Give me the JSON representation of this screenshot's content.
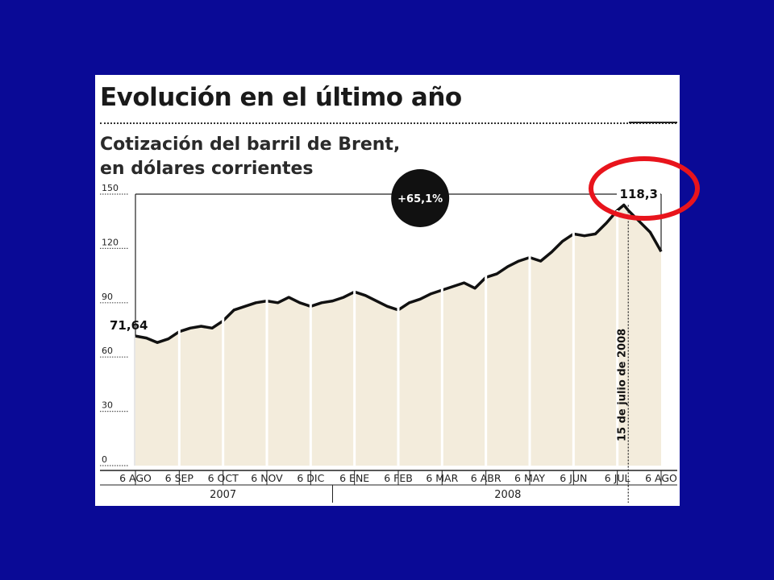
{
  "header": {
    "title": "Evolución en el último año",
    "subtitle_line1": "Cotización del barril de Brent,",
    "subtitle_line2": "en dólares corrientes"
  },
  "annotations": {
    "change_badge": "+65,1%",
    "start_value_label": "71,64",
    "peak_value_label": "118,3",
    "peak_date_label": "15 de julio de 2008"
  },
  "colors": {
    "background": "#0a0a96",
    "panel": "#ffffff",
    "area_fill": "#f3ecdc",
    "line": "#111111",
    "highlight_circle": "#e8141c"
  },
  "chart_data": {
    "type": "area",
    "title": "Evolución en el último año",
    "subtitle": "Cotización del barril de Brent, en dólares corrientes",
    "ylim": [
      0,
      150
    ],
    "y_ticks": [
      0,
      30,
      60,
      90,
      120,
      150
    ],
    "x_ticks": [
      "6 AGO",
      "6 SEP",
      "6 OCT",
      "6 NOV",
      "6 DIC",
      "6 ENE",
      "6 FEB",
      "6 MAR",
      "6 ABR",
      "6 MAY",
      "6 JUN",
      "6 JUL",
      "6 AGO"
    ],
    "years": [
      {
        "label": "2007",
        "start_tick": 0,
        "end_tick": 4
      },
      {
        "label": "2008",
        "start_tick": 5,
        "end_tick": 12
      }
    ],
    "grid": "vertical-white-bands",
    "x": [
      0,
      0.25,
      0.5,
      0.75,
      1,
      1.25,
      1.5,
      1.75,
      2,
      2.25,
      2.5,
      2.75,
      3,
      3.25,
      3.5,
      3.75,
      4,
      4.25,
      4.5,
      4.75,
      5,
      5.25,
      5.5,
      5.75,
      6,
      6.25,
      6.5,
      6.75,
      7,
      7.25,
      7.5,
      7.75,
      8,
      8.25,
      8.5,
      8.75,
      9,
      9.25,
      9.5,
      9.75,
      10,
      10.25,
      10.5,
      10.75,
      11,
      11.15,
      11.25,
      11.5,
      11.75,
      12
    ],
    "values": [
      71.6,
      70.5,
      68,
      70,
      74,
      76,
      77,
      76,
      80,
      86,
      88,
      90,
      91,
      90,
      93,
      90,
      88,
      90,
      91,
      93,
      96,
      94,
      91,
      88,
      86,
      90,
      92,
      95,
      97,
      99,
      101,
      98,
      104,
      106,
      110,
      113,
      115,
      113,
      118,
      124,
      128,
      127,
      128,
      134,
      141,
      144,
      141,
      135,
      129,
      118.3
    ]
  }
}
